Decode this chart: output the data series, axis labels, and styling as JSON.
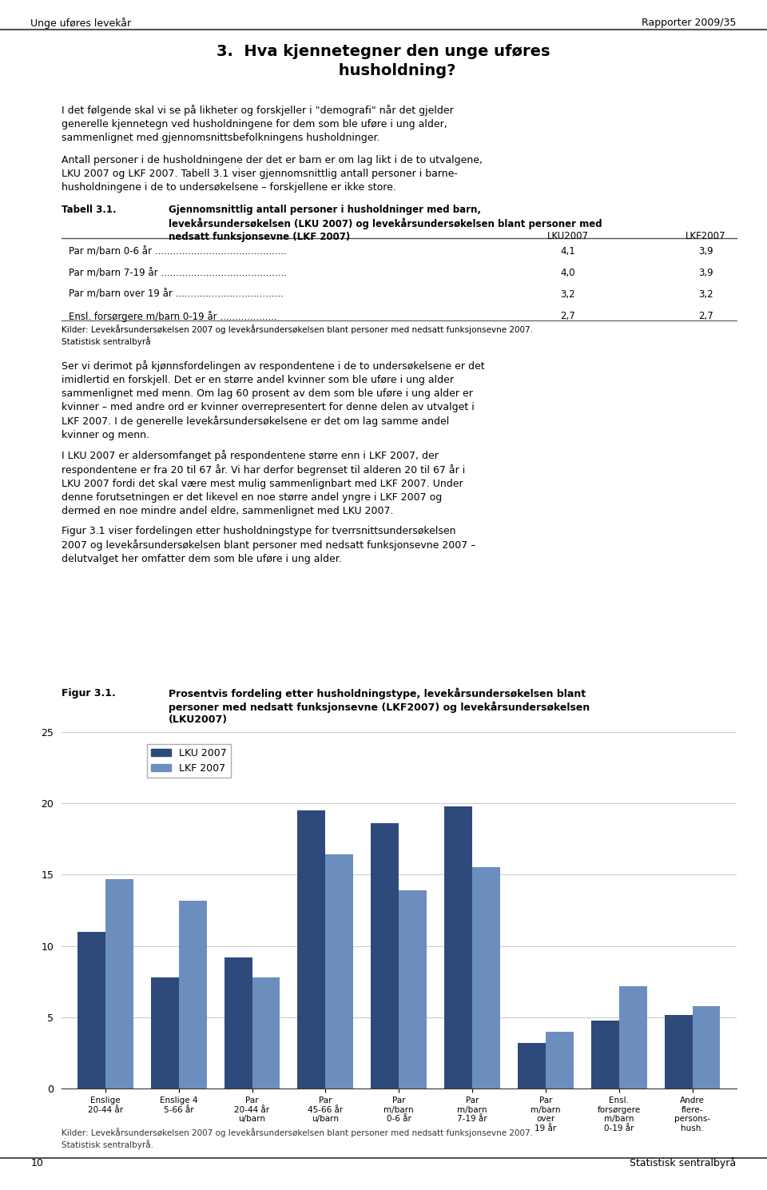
{
  "title": "Prosentvis fordeling etter husholdningstype, levekårsundersøkelsen blant\npersoner med nedsatt funksjonsevne (LKF2007) og levekårsundersøkelsen\n(LKU2007)",
  "fig_label": "Figur 3.1.",
  "categories": [
    "Enslige\n20-44 år",
    "Enslige 4\n5-66 år",
    "Par\n20-44 år\nu/barn",
    "Par\n45-66 år\nu/barn",
    "Par\nm/barn\n0-6 år",
    "Par\nm/barn\n7-19 år",
    "Par\nm/barn\nover\n19 år",
    "Ensl.\nforsørgere\nm/barn\n0-19 år",
    "Andre\nflere-\npersons-\nhush."
  ],
  "lku_values": [
    11.0,
    7.8,
    9.2,
    19.5,
    18.6,
    19.8,
    3.2,
    4.8,
    5.2
  ],
  "lkf_values": [
    14.7,
    13.2,
    7.8,
    16.4,
    13.9,
    15.5,
    4.0,
    7.2,
    5.8
  ],
  "lku_color": "#2E4A7A",
  "lkf_color": "#6C8EBF",
  "ylim": [
    0,
    25
  ],
  "yticks": [
    0,
    5,
    10,
    15,
    20,
    25
  ],
  "legend_lku": "LKU 2007",
  "legend_lkf": "LKF 2007",
  "source_text": "Kilder: Levekårsundersøkelsen 2007 og levekårsundersøkelsen blant personer med nedsatt funksjonsevne 2007.\nStatistisk sentralbyrå.",
  "background_color": "#FFFFFF",
  "grid_color": "#CCCCCC",
  "header_left": "Unge uføres levekår",
  "header_right": "Rapporter 2009/35",
  "chapter_title": "3.  Hva kjennetegner den unge uføres\n     husholdning?",
  "body1": "I det følgende skal vi se på likheter og forskjeller i \"demografi\" når det gjelder\ngenerelle kjennetegn ved husholdningene for dem som ble uføre i ung alder,\nsammenlignet med gjennomsnittsbefolkningens husholdninger.",
  "body2": "Antall personer i de husholdningene der det er barn er om lag likt i de to utvalgene,\nLKU 2007 og LKF 2007. Tabell 3.1 viser gjennomsnittlig antall personer i barne-\nhusholdningene i de to undersøkelsene – forskjellene er ikke store.",
  "table_label": "Tabell 3.1.",
  "table_title": "Gjennomsnittlig antall personer i husholdninger med barn,\nlevekårsundersøkelsen (LKU 2007) og levekårsundersøkelsen blant personer med\nnedsatt funksjonsevne (LKF 2007)",
  "table_col1": "LKU2007",
  "table_col2": "LKF2007",
  "table_rows": [
    [
      "Par m/barn 0-6 år ............................................",
      "4,1",
      "3,9"
    ],
    [
      "Par m/barn 7-19 år ..........................................",
      "4,0",
      "3,9"
    ],
    [
      "Par m/barn over 19 år ....................................",
      "3,2",
      "3,2"
    ],
    [
      "Ensl. forsørgere m/barn 0-19 år ...................",
      "2,7",
      "2,7"
    ]
  ],
  "table_source": "Kilder: Levekårsundersøkelsen 2007 og levekårsundersøkelsen blant personer med nedsatt funksjonsevne 2007.\nStatistisk sentralbyrå",
  "body3": "Ser vi derimot på kjønnsfordelingen av respondentene i de to undersøkelsene er det\nimidlertid en forskjell. Det er en større andel kvinner som ble uføre i ung alder\nsammenlignet med menn. Om lag 60 prosent av dem som ble uføre i ung alder er\nkvinner – med andre ord er kvinner overrepresentert for denne delen av utvalget i\nLKF 2007. I de generelle levekårsundersøkelsene er det om lag samme andel\nkvinner og menn.",
  "body4": "I LKU 2007 er aldersomfanget på respondentene større enn i LKF 2007, der\nrespondentene er fra 20 til 67 år. Vi har derfor begrenset til alderen 20 til 67 år i\nLKU 2007 fordi det skal være mest mulig sammenlignbart med LKF 2007. Under\ndenne forutsetningen er det likevel en noe større andel yngre i LKF 2007 og\ndermed en noe mindre andel eldre, sammenlignet med LKU 2007.",
  "body5": "Figur 3.1 viser fordelingen etter husholdningstype for tverrsnittsundersøkelsen\n2007 og levekårsundersøkelsen blant personer med nedsatt funksjonsevne 2007 –\ndelutvalget her omfatter dem som ble uføre i ung alder.",
  "page_number": "10",
  "footer_right": "Statistisk sentralbyrå"
}
